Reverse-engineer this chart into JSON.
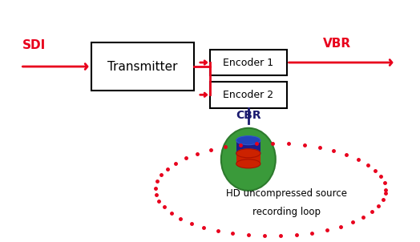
{
  "bg_color": "#ffffff",
  "red_color": "#e8001c",
  "dark_blue": "#1a1a6e",
  "green_color": "#3a9a3a",
  "dark_green": "#2d7a2d",
  "navy_color": "#1c1c8a",
  "box_edge": "#000000",
  "transmitter_label": "Transmitter",
  "encoder1_label": "Encoder 1",
  "encoder2_label": "Encoder 2",
  "sdi_label": "SDI",
  "vbr_label": "VBR",
  "cbr_label": "CBR",
  "loop_label_line1": "HD uncompressed source",
  "loop_label_line2": "recording loop",
  "figsize": [
    5.24,
    3.02
  ],
  "dpi": 100
}
